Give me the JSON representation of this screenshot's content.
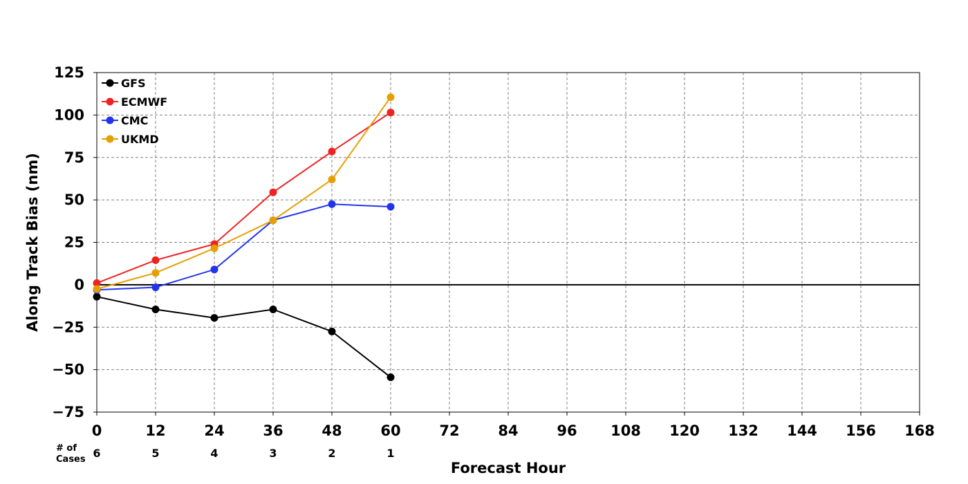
{
  "chart_data": {
    "type": "line",
    "xlabel": "Forecast Hour",
    "ylabel": "Along Track Bias (nm)",
    "xlim": [
      0,
      168
    ],
    "ylim": [
      -75,
      125
    ],
    "x_ticks": [
      0,
      12,
      24,
      36,
      48,
      60,
      72,
      84,
      96,
      108,
      120,
      132,
      144,
      156,
      168
    ],
    "y_ticks": [
      -75,
      -50,
      -25,
      0,
      25,
      50,
      75,
      100,
      125
    ],
    "y_tick_labels": [
      "−75",
      "−50",
      "−25",
      "0",
      "25",
      "50",
      "75",
      "100",
      "125"
    ],
    "grid": true,
    "zero_line": true,
    "legend_position": "top-left",
    "series": [
      {
        "name": "GFS",
        "color": "#000000",
        "x": [
          0,
          12,
          24,
          36,
          48,
          60
        ],
        "values": [
          -7,
          -14.5,
          -19.5,
          -14.5,
          -27.5,
          -54.5
        ]
      },
      {
        "name": "ECMWF",
        "color": "#ee2222",
        "x": [
          0,
          12,
          24,
          36,
          48,
          60
        ],
        "values": [
          1,
          14.5,
          24,
          54.5,
          78.5,
          101.5
        ]
      },
      {
        "name": "CMC",
        "color": "#2233ee",
        "x": [
          0,
          12,
          24,
          36,
          48,
          60
        ],
        "values": [
          -3,
          -1.5,
          9,
          38,
          47.5,
          46
        ]
      },
      {
        "name": "UKMD",
        "color": "#e69f00",
        "x": [
          0,
          12,
          24,
          36,
          48,
          60
        ],
        "values": [
          -2.5,
          7,
          21.5,
          38,
          62,
          110.5
        ]
      }
    ],
    "cases": {
      "label_line1": "# of",
      "label_line2": "Cases",
      "x": [
        0,
        12,
        24,
        36,
        48,
        60
      ],
      "counts": [
        "6",
        "5",
        "4",
        "3",
        "2",
        "1"
      ]
    }
  }
}
